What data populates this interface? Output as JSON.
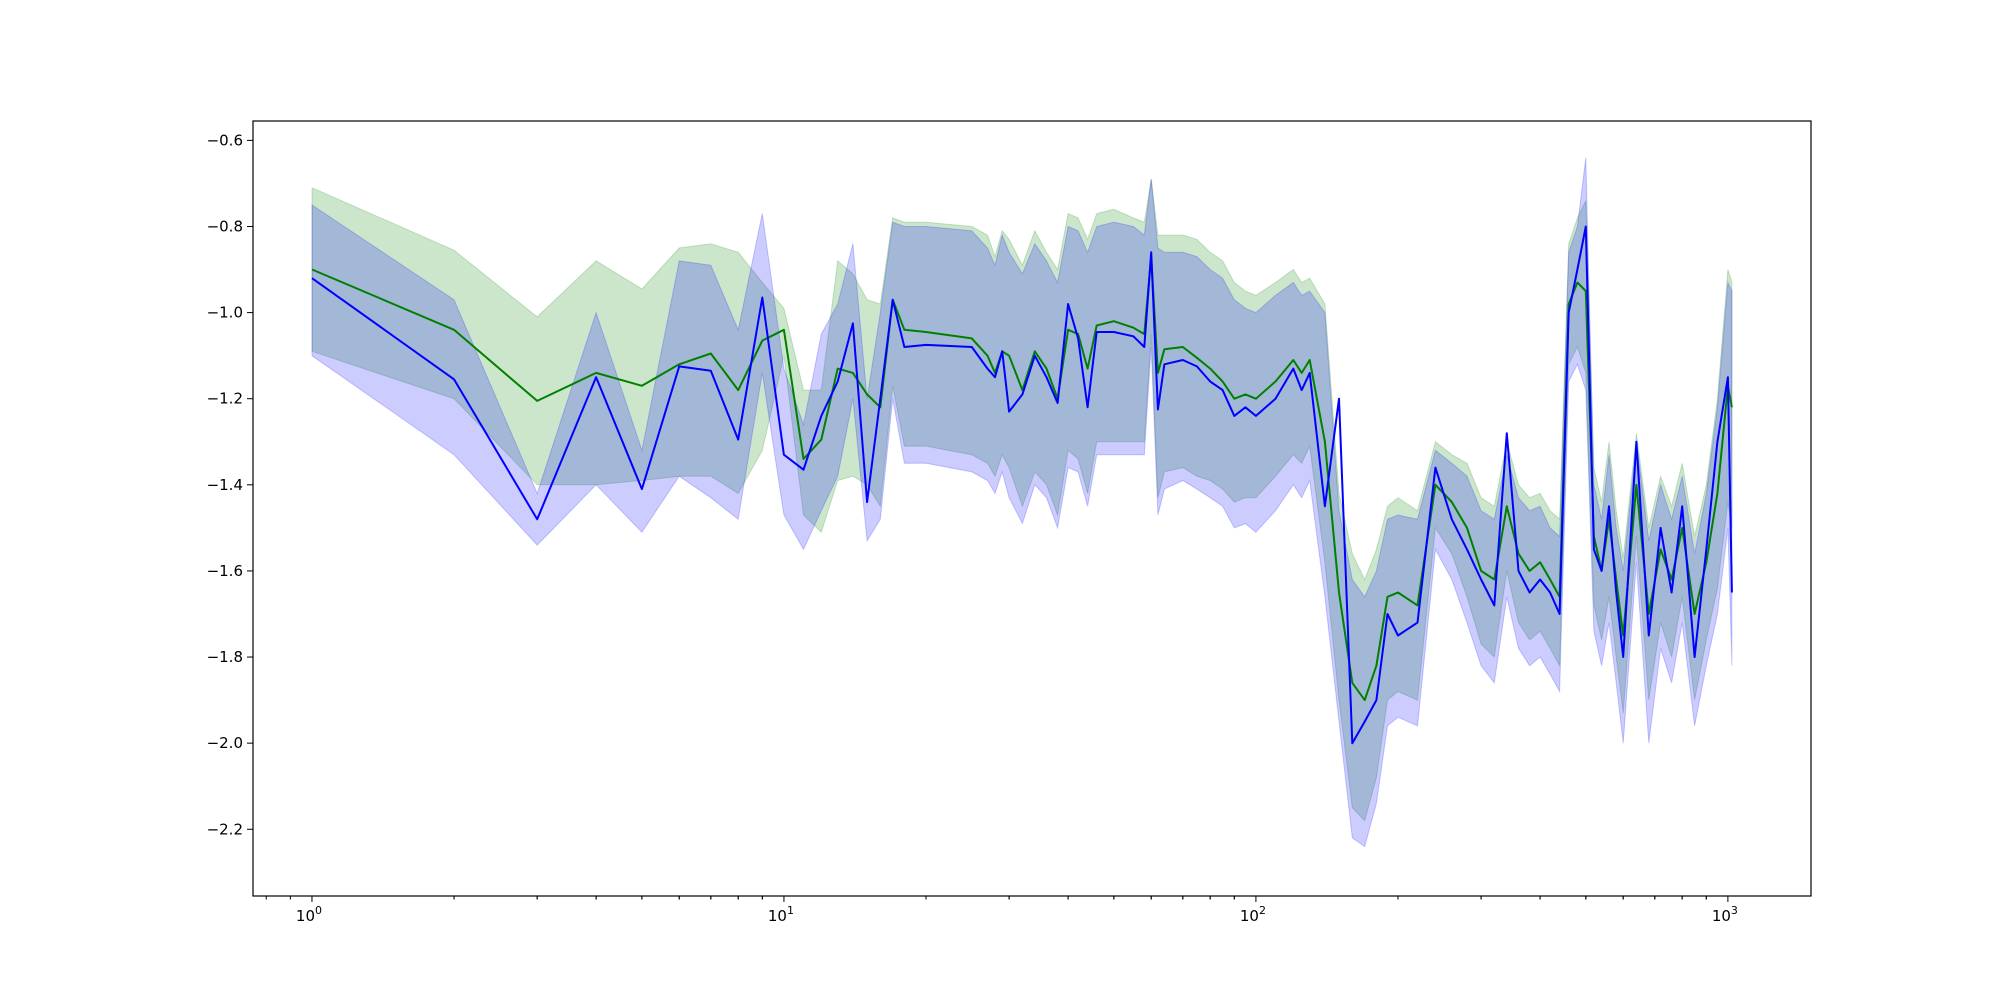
{
  "chart_data": {
    "type": "line",
    "title": "",
    "xlabel": "",
    "ylabel": "",
    "xscale": "log",
    "xlim": [
      0.75,
      1500
    ],
    "ylim": [
      -2.355,
      -0.555
    ],
    "grid": false,
    "legend": "none",
    "x_ticks": [
      {
        "value": 1,
        "label": "10^0",
        "base": "10",
        "exp": "0"
      },
      {
        "value": 10,
        "label": "10^1",
        "base": "10",
        "exp": "1"
      },
      {
        "value": 100,
        "label": "10^2",
        "base": "10",
        "exp": "2"
      },
      {
        "value": 1000,
        "label": "10^3",
        "base": "10",
        "exp": "3"
      }
    ],
    "y_ticks": [
      {
        "value": -0.6,
        "label": "−0.6"
      },
      {
        "value": -0.8,
        "label": "−0.8"
      },
      {
        "value": -1.0,
        "label": "−1.0"
      },
      {
        "value": -1.2,
        "label": "−1.2"
      },
      {
        "value": -1.4,
        "label": "−1.4"
      },
      {
        "value": -1.6,
        "label": "−1.6"
      },
      {
        "value": -1.8,
        "label": "−1.8"
      },
      {
        "value": -2.0,
        "label": "−2.0"
      },
      {
        "value": -2.2,
        "label": "−2.2"
      }
    ],
    "series": [
      {
        "color": "#008000",
        "band_color": "#008000",
        "band_opacity": 0.2,
        "x": [
          1,
          2,
          3,
          4,
          5,
          6,
          7,
          8,
          9,
          10,
          11,
          12,
          13,
          14,
          15,
          16,
          17,
          18,
          20,
          25,
          27,
          28,
          29,
          30,
          32,
          34,
          36,
          38,
          40,
          42,
          44,
          46,
          50,
          55,
          58,
          60,
          62,
          64,
          70,
          75,
          80,
          85,
          90,
          95,
          100,
          110,
          120,
          125,
          130,
          140,
          150,
          160,
          170,
          180,
          190,
          200,
          220,
          240,
          260,
          280,
          300,
          320,
          340,
          360,
          380,
          400,
          420,
          440,
          460,
          480,
          500,
          520,
          540,
          560,
          580,
          600,
          640,
          680,
          720,
          760,
          800,
          850,
          900,
          950,
          1000,
          1020
        ],
        "y": [
          -0.9,
          -1.04,
          -1.205,
          -1.14,
          -1.17,
          -1.12,
          -1.095,
          -1.18,
          -1.065,
          -1.04,
          -1.34,
          -1.295,
          -1.13,
          -1.14,
          -1.19,
          -1.22,
          -0.97,
          -1.04,
          -1.045,
          -1.06,
          -1.1,
          -1.14,
          -1.09,
          -1.1,
          -1.18,
          -1.09,
          -1.13,
          -1.2,
          -1.04,
          -1.05,
          -1.13,
          -1.03,
          -1.02,
          -1.035,
          -1.05,
          -0.87,
          -1.14,
          -1.085,
          -1.08,
          -1.105,
          -1.13,
          -1.16,
          -1.2,
          -1.19,
          -1.2,
          -1.16,
          -1.11,
          -1.14,
          -1.11,
          -1.3,
          -1.65,
          -1.86,
          -1.9,
          -1.82,
          -1.66,
          -1.65,
          -1.68,
          -1.4,
          -1.44,
          -1.5,
          -1.6,
          -1.62,
          -1.45,
          -1.56,
          -1.6,
          -1.58,
          -1.62,
          -1.66,
          -0.98,
          -0.93,
          -0.95,
          -1.52,
          -1.6,
          -1.48,
          -1.62,
          -1.75,
          -1.4,
          -1.7,
          -1.55,
          -1.62,
          -1.5,
          -1.7,
          -1.58,
          -1.42,
          -1.17,
          -1.22
        ],
        "upper": [
          -0.71,
          -0.855,
          -1.01,
          -0.88,
          -0.945,
          -0.85,
          -0.84,
          -0.86,
          -0.93,
          -0.99,
          -1.18,
          -1.18,
          -0.88,
          -0.91,
          -0.97,
          -0.98,
          -0.78,
          -0.79,
          -0.79,
          -0.8,
          -0.82,
          -0.87,
          -0.81,
          -0.83,
          -0.89,
          -0.81,
          -0.86,
          -0.9,
          -0.77,
          -0.78,
          -0.83,
          -0.77,
          -0.76,
          -0.78,
          -0.79,
          -0.69,
          -0.82,
          -0.82,
          -0.82,
          -0.83,
          -0.86,
          -0.88,
          -0.93,
          -0.95,
          -0.96,
          -0.93,
          -0.9,
          -0.93,
          -0.92,
          -0.98,
          -1.42,
          -1.56,
          -1.62,
          -1.55,
          -1.45,
          -1.43,
          -1.46,
          -1.3,
          -1.33,
          -1.35,
          -1.43,
          -1.45,
          -1.3,
          -1.4,
          -1.43,
          -1.42,
          -1.46,
          -1.48,
          -0.84,
          -0.78,
          -0.74,
          -1.36,
          -1.44,
          -1.3,
          -1.46,
          -1.57,
          -1.28,
          -1.5,
          -1.38,
          -1.45,
          -1.35,
          -1.52,
          -1.4,
          -1.2,
          -0.9,
          -0.93
        ],
        "lower": [
          -1.09,
          -1.2,
          -1.4,
          -1.4,
          -1.39,
          -1.38,
          -1.38,
          -1.42,
          -1.32,
          -1.1,
          -1.47,
          -1.51,
          -1.39,
          -1.38,
          -1.4,
          -1.45,
          -1.17,
          -1.31,
          -1.31,
          -1.33,
          -1.35,
          -1.38,
          -1.33,
          -1.36,
          -1.45,
          -1.37,
          -1.4,
          -1.47,
          -1.32,
          -1.34,
          -1.42,
          -1.3,
          -1.3,
          -1.3,
          -1.3,
          -1.05,
          -1.43,
          -1.37,
          -1.36,
          -1.38,
          -1.39,
          -1.41,
          -1.44,
          -1.43,
          -1.43,
          -1.38,
          -1.33,
          -1.35,
          -1.31,
          -1.58,
          -1.9,
          -2.15,
          -2.18,
          -2.08,
          -1.9,
          -1.88,
          -1.9,
          -1.5,
          -1.56,
          -1.66,
          -1.77,
          -1.8,
          -1.6,
          -1.72,
          -1.76,
          -1.74,
          -1.78,
          -1.82,
          -1.12,
          -1.08,
          -1.14,
          -1.68,
          -1.76,
          -1.66,
          -1.8,
          -1.93,
          -1.52,
          -1.9,
          -1.72,
          -1.8,
          -1.66,
          -1.9,
          -1.76,
          -1.64,
          -1.44,
          -1.5
        ]
      },
      {
        "color": "#0000ff",
        "band_color": "#0000ff",
        "band_opacity": 0.2,
        "x": [
          1,
          2,
          3,
          4,
          5,
          6,
          7,
          8,
          9,
          10,
          11,
          12,
          13,
          14,
          15,
          16,
          17,
          18,
          20,
          25,
          27,
          28,
          29,
          30,
          32,
          34,
          36,
          38,
          40,
          42,
          44,
          46,
          50,
          55,
          58,
          60,
          62,
          64,
          70,
          75,
          80,
          85,
          90,
          95,
          100,
          110,
          120,
          125,
          130,
          140,
          150,
          160,
          170,
          180,
          190,
          200,
          220,
          240,
          260,
          280,
          300,
          320,
          340,
          360,
          380,
          400,
          420,
          440,
          460,
          480,
          500,
          520,
          540,
          560,
          580,
          600,
          640,
          680,
          720,
          760,
          800,
          850,
          900,
          950,
          1000,
          1020
        ],
        "y": [
          -0.92,
          -1.155,
          -1.48,
          -1.15,
          -1.41,
          -1.125,
          -1.135,
          -1.295,
          -0.965,
          -1.33,
          -1.365,
          -1.24,
          -1.16,
          -1.025,
          -1.44,
          -1.2,
          -0.97,
          -1.08,
          -1.075,
          -1.08,
          -1.13,
          -1.15,
          -1.09,
          -1.23,
          -1.19,
          -1.1,
          -1.15,
          -1.21,
          -0.98,
          -1.06,
          -1.22,
          -1.045,
          -1.045,
          -1.055,
          -1.08,
          -0.86,
          -1.225,
          -1.12,
          -1.11,
          -1.125,
          -1.16,
          -1.18,
          -1.24,
          -1.22,
          -1.24,
          -1.2,
          -1.13,
          -1.18,
          -1.14,
          -1.45,
          -1.2,
          -2.0,
          -1.95,
          -1.9,
          -1.7,
          -1.75,
          -1.72,
          -1.36,
          -1.48,
          -1.55,
          -1.62,
          -1.68,
          -1.28,
          -1.6,
          -1.65,
          -1.62,
          -1.65,
          -1.7,
          -1.0,
          -0.9,
          -0.8,
          -1.55,
          -1.6,
          -1.45,
          -1.65,
          -1.8,
          -1.3,
          -1.75,
          -1.5,
          -1.65,
          -1.45,
          -1.8,
          -1.55,
          -1.3,
          -1.15,
          -1.65
        ],
        "upper": [
          -0.75,
          -0.97,
          -1.42,
          -1.0,
          -1.32,
          -0.88,
          -0.89,
          -1.04,
          -0.77,
          -1.13,
          -1.26,
          -1.05,
          -0.98,
          -0.84,
          -1.2,
          -1.0,
          -0.79,
          -0.8,
          -0.8,
          -0.81,
          -0.85,
          -0.89,
          -0.82,
          -0.86,
          -0.91,
          -0.84,
          -0.88,
          -0.93,
          -0.8,
          -0.81,
          -0.86,
          -0.8,
          -0.79,
          -0.8,
          -0.82,
          -0.69,
          -0.85,
          -0.86,
          -0.86,
          -0.87,
          -0.9,
          -0.92,
          -0.97,
          -0.99,
          -1.0,
          -0.96,
          -0.93,
          -0.96,
          -0.95,
          -1.0,
          -1.46,
          -1.62,
          -1.66,
          -1.6,
          -1.48,
          -1.47,
          -1.48,
          -1.32,
          -1.35,
          -1.38,
          -1.46,
          -1.48,
          -1.33,
          -1.43,
          -1.46,
          -1.45,
          -1.5,
          -1.52,
          -0.86,
          -0.8,
          -0.64,
          -1.4,
          -1.48,
          -1.33,
          -1.5,
          -1.6,
          -1.3,
          -1.53,
          -1.4,
          -1.48,
          -1.38,
          -1.56,
          -1.42,
          -1.22,
          -0.93,
          -0.95
        ],
        "lower": [
          -1.1,
          -1.33,
          -1.54,
          -1.4,
          -1.51,
          -1.38,
          -1.43,
          -1.48,
          -1.14,
          -1.47,
          -1.55,
          -1.46,
          -1.38,
          -1.2,
          -1.53,
          -1.48,
          -1.2,
          -1.35,
          -1.35,
          -1.37,
          -1.39,
          -1.42,
          -1.37,
          -1.43,
          -1.49,
          -1.4,
          -1.43,
          -1.5,
          -1.36,
          -1.37,
          -1.45,
          -1.33,
          -1.33,
          -1.33,
          -1.33,
          -1.08,
          -1.47,
          -1.41,
          -1.39,
          -1.41,
          -1.43,
          -1.45,
          -1.5,
          -1.49,
          -1.51,
          -1.46,
          -1.4,
          -1.43,
          -1.39,
          -1.66,
          -1.95,
          -2.22,
          -2.24,
          -2.14,
          -1.96,
          -1.94,
          -1.96,
          -1.55,
          -1.62,
          -1.72,
          -1.82,
          -1.86,
          -1.66,
          -1.78,
          -1.82,
          -1.8,
          -1.84,
          -1.88,
          -1.16,
          -1.12,
          -1.18,
          -1.74,
          -1.82,
          -1.72,
          -1.86,
          -2.0,
          -1.58,
          -2.0,
          -1.78,
          -1.86,
          -1.72,
          -1.96,
          -1.82,
          -1.7,
          -1.5,
          -1.82
        ]
      }
    ]
  }
}
